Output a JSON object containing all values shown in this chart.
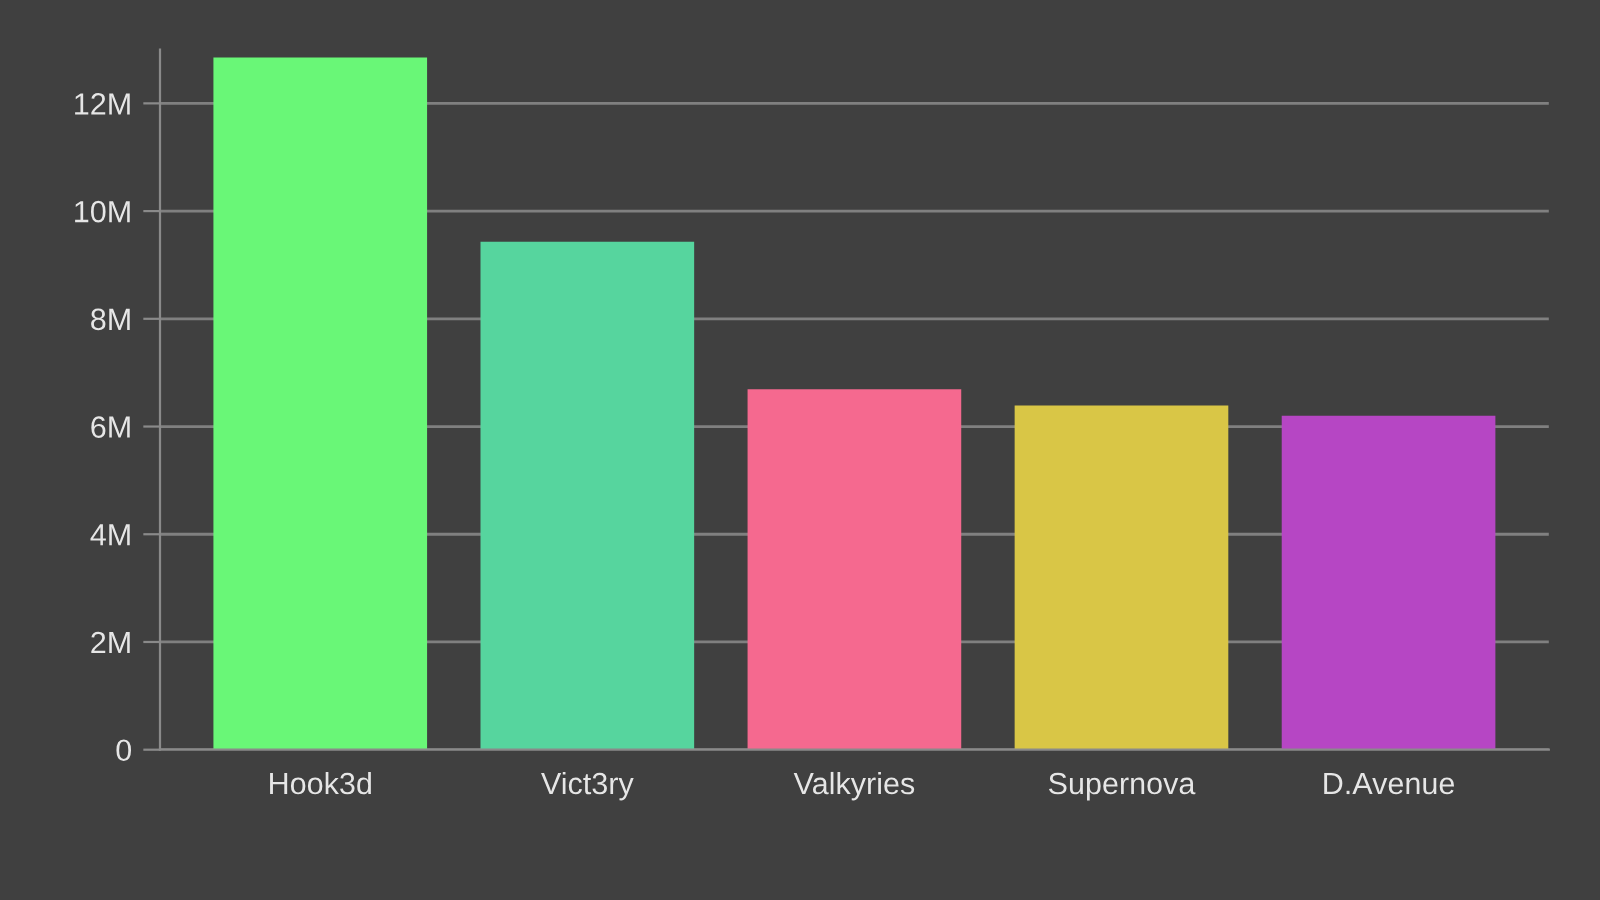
{
  "chart_data": {
    "type": "bar",
    "categories": [
      "Hook3d",
      "Vict3ry",
      "Valkyries",
      "Supernova",
      "D.Avenue"
    ],
    "values": [
      12850000,
      9430000,
      6690000,
      6390000,
      6200000
    ],
    "colors": [
      "#69f777",
      "#56d59e",
      "#f5698f",
      "#d9c646",
      "#b646c4"
    ],
    "ylim": [
      0,
      13000000
    ],
    "yticks": [
      {
        "value": 0,
        "label": "0"
      },
      {
        "value": 2000000,
        "label": "2M"
      },
      {
        "value": 4000000,
        "label": "4M"
      },
      {
        "value": 6000000,
        "label": "6M"
      },
      {
        "value": 8000000,
        "label": "8M"
      },
      {
        "value": 10000000,
        "label": "10M"
      },
      {
        "value": 12000000,
        "label": "12M"
      }
    ],
    "grid": "y",
    "legend": false
  }
}
